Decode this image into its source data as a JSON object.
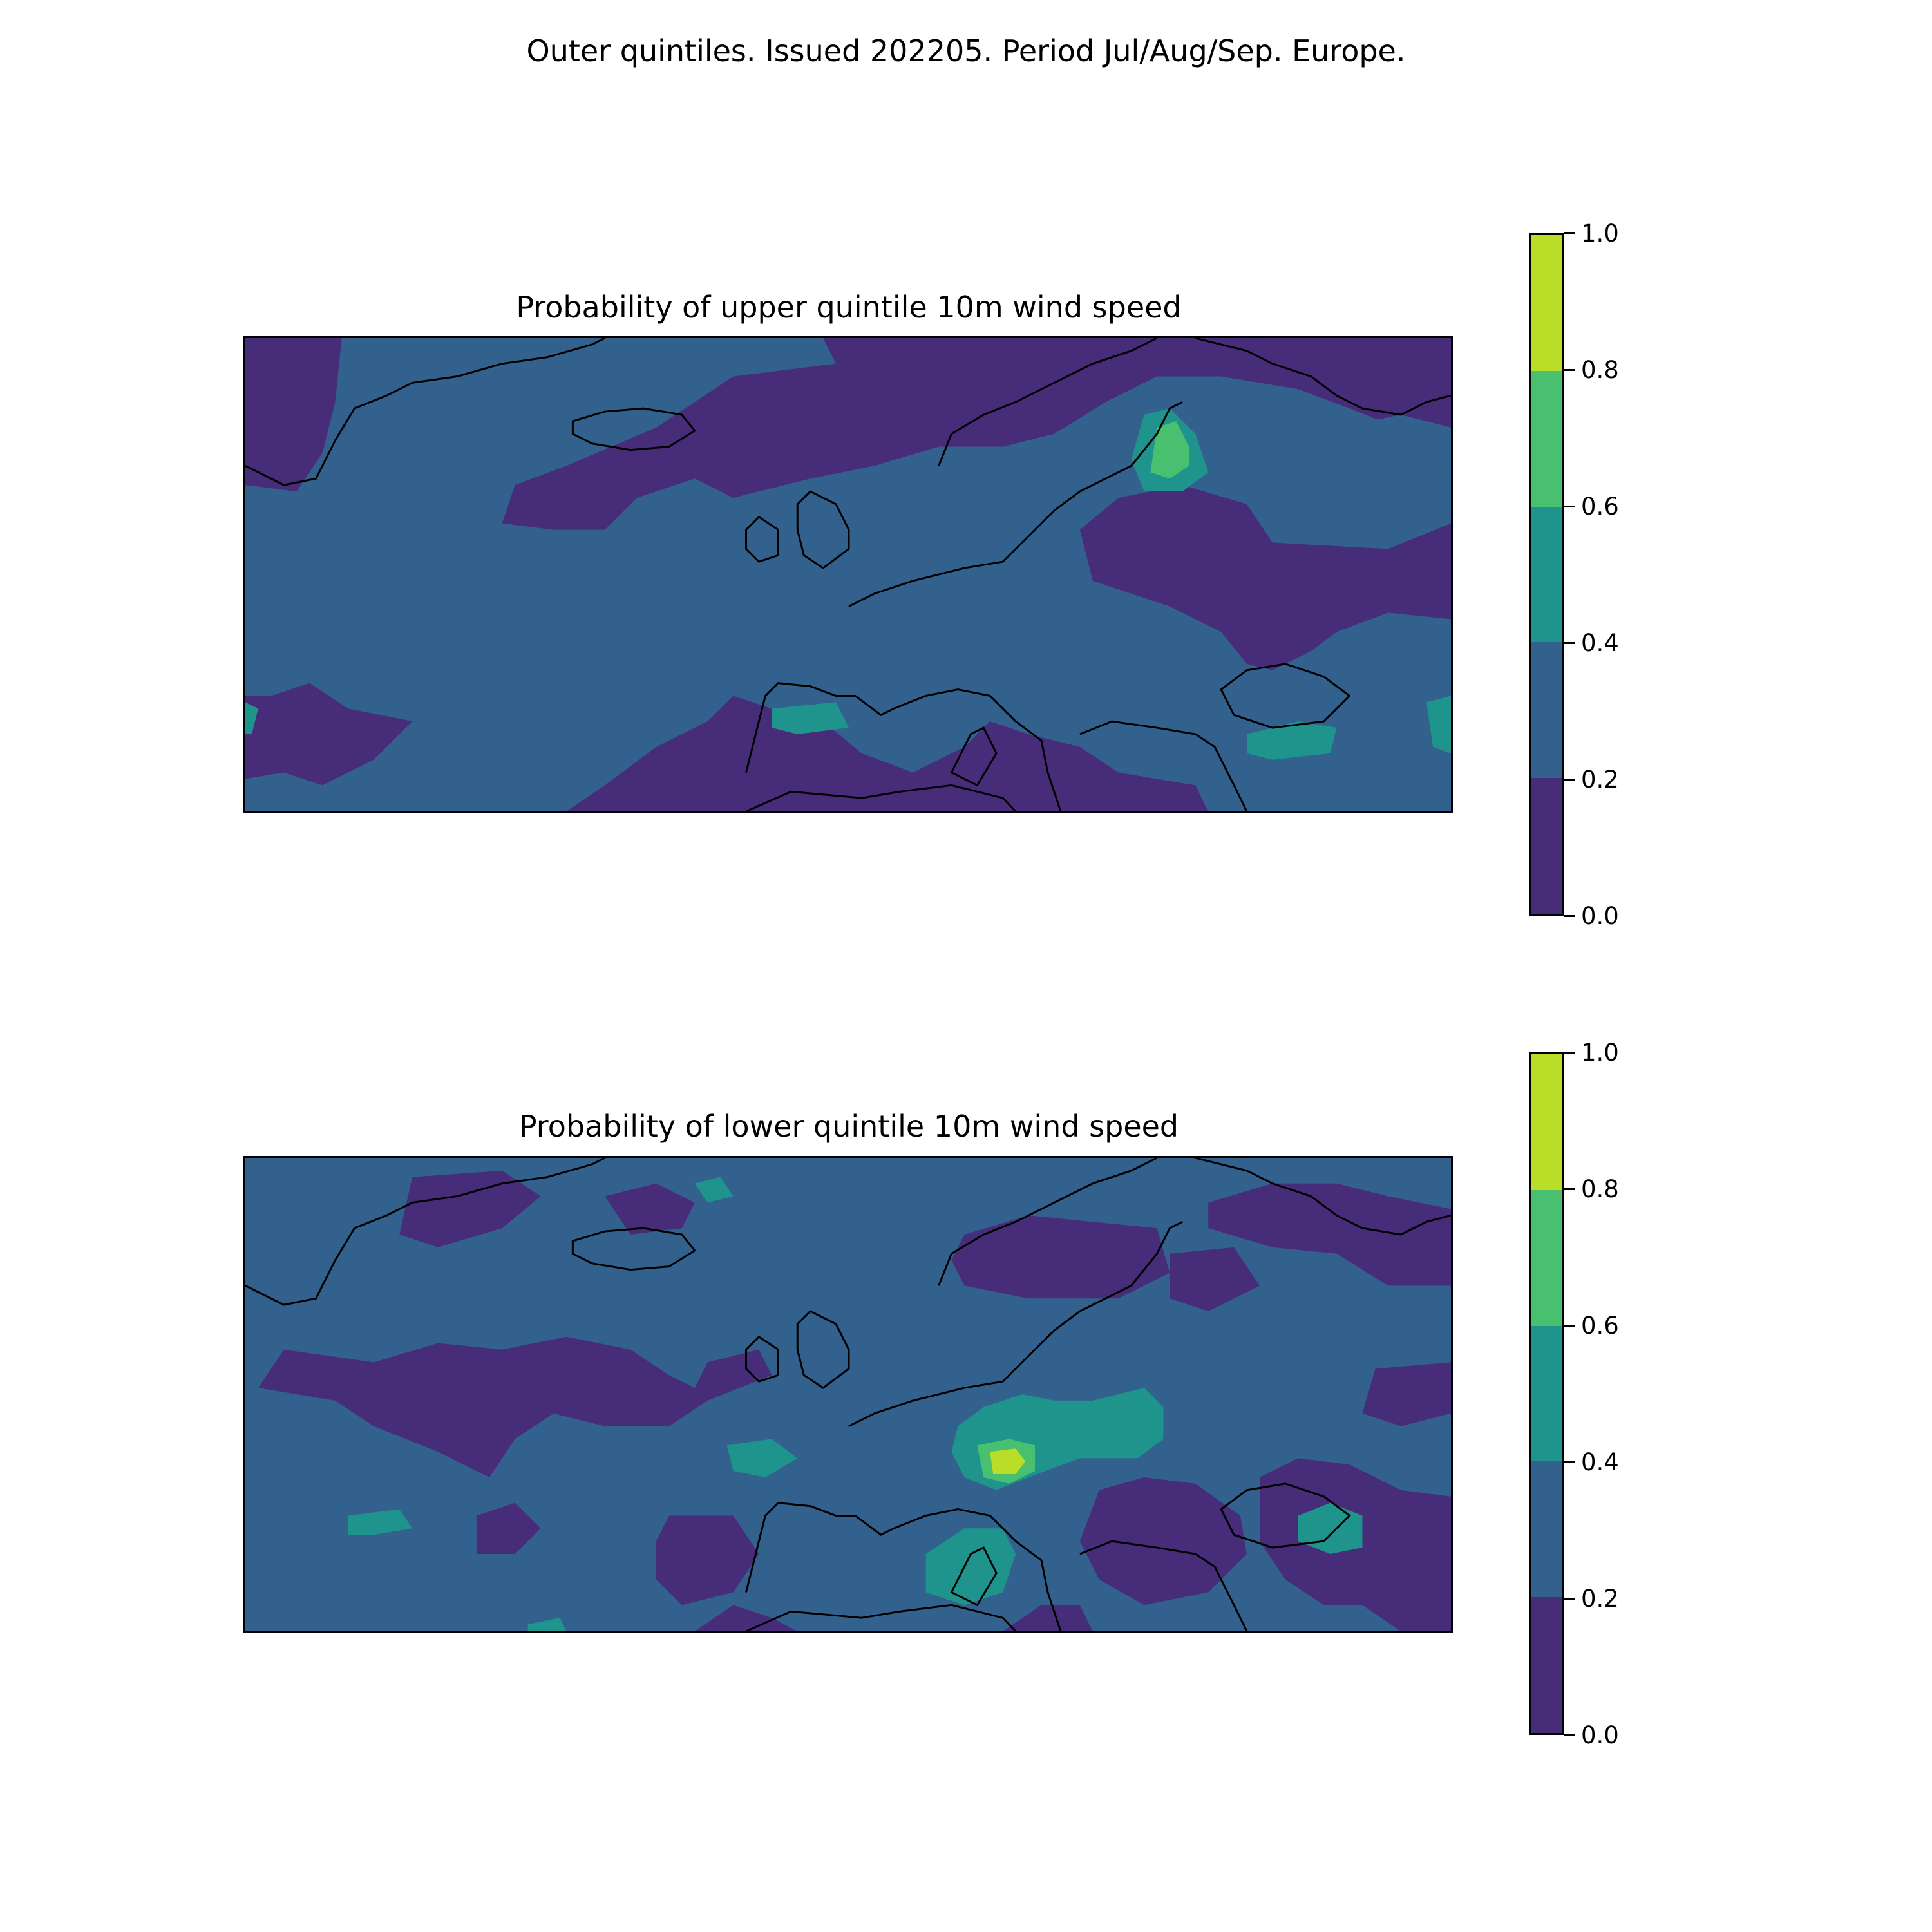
{
  "figure": {
    "suptitle": "Outer quintiles. Issued 202205. Period Jul/Aug/Sep. Europe."
  },
  "panels": [
    {
      "title": "Probability of upper quintile 10m wind speed",
      "colorbar": {
        "ticks": [
          "0.0",
          "0.2",
          "0.4",
          "0.6",
          "0.8",
          "1.0"
        ]
      }
    },
    {
      "title": "Probability of lower quintile 10m wind speed",
      "colorbar": {
        "ticks": [
          "0.0",
          "0.2",
          "0.4",
          "0.6",
          "0.8",
          "1.0"
        ]
      }
    }
  ],
  "colormap": {
    "name": "viridis",
    "levels": [
      0.0,
      0.2,
      0.4,
      0.6,
      0.8,
      1.0
    ],
    "colors": [
      "#472c7a",
      "#33618d",
      "#1f948c",
      "#48c06f",
      "#bade28"
    ]
  },
  "map_region": "Europe"
}
